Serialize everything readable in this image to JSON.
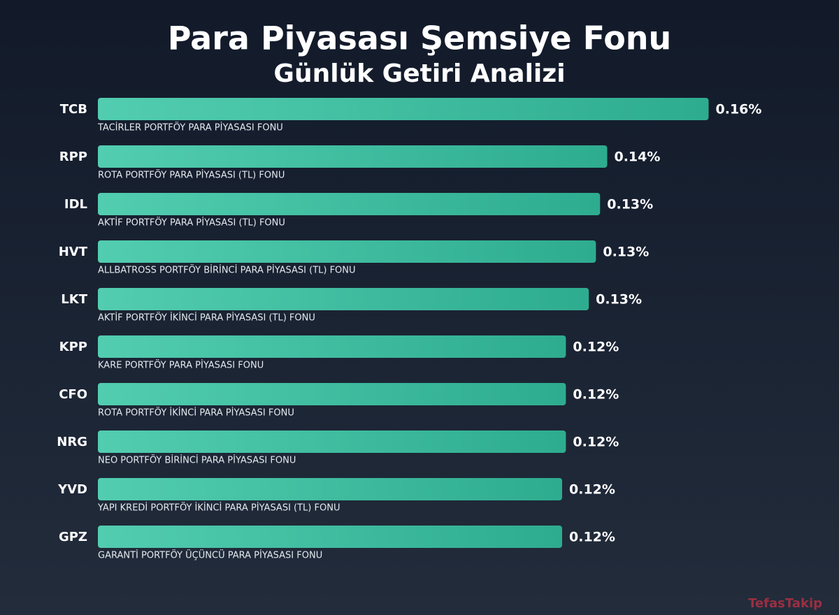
{
  "chart_data": {
    "type": "bar",
    "orientation": "horizontal",
    "title": "Para Piyasası Şemsiye Fonu",
    "subtitle": "Günlük Getiri Analizi",
    "categories": [
      "TCB",
      "RPP",
      "IDL",
      "HVT",
      "LKT",
      "KPP",
      "CFO",
      "NRG",
      "YVD",
      "GPZ"
    ],
    "descriptions": [
      "TACİRLER PORTFÖY PARA PİYASASI FONU",
      "ROTA PORTFÖY PARA PİYASASI (TL) FONU",
      "AKTİF PORTFÖY PARA PİYASASI (TL) FONU",
      "ALLBATROSS PORTFÖY BİRİNCİ PARA PİYASASI (TL) FONU",
      "AKTİF PORTFÖY İKİNCİ PARA PİYASASI (TL) FONU",
      "KARE PORTFÖY PARA PİYASASI FONU",
      "ROTA PORTFÖY İKİNCİ PARA PİYASASI FONU",
      "NEO PORTFÖY BİRİNCİ PARA PİYASASI FONU",
      "YAPI KREDİ PORTFÖY İKİNCİ PARA PİYASASI (TL) FONU",
      "GARANTİ PORTFÖY ÜÇÜNCÜ PARA PİYASASI FONU"
    ],
    "values": [
      0.1626,
      0.1356,
      0.1337,
      0.1326,
      0.1307,
      0.1246,
      0.1246,
      0.1246,
      0.1236,
      0.1236
    ],
    "value_labels": [
      "0.16%",
      "0.14%",
      "0.13%",
      "0.13%",
      "0.13%",
      "0.12%",
      "0.12%",
      "0.12%",
      "0.12%",
      "0.12%"
    ],
    "xlim": [
      0,
      0.18
    ],
    "color": "#3fbf9f",
    "watermark": "TefasTakip"
  }
}
